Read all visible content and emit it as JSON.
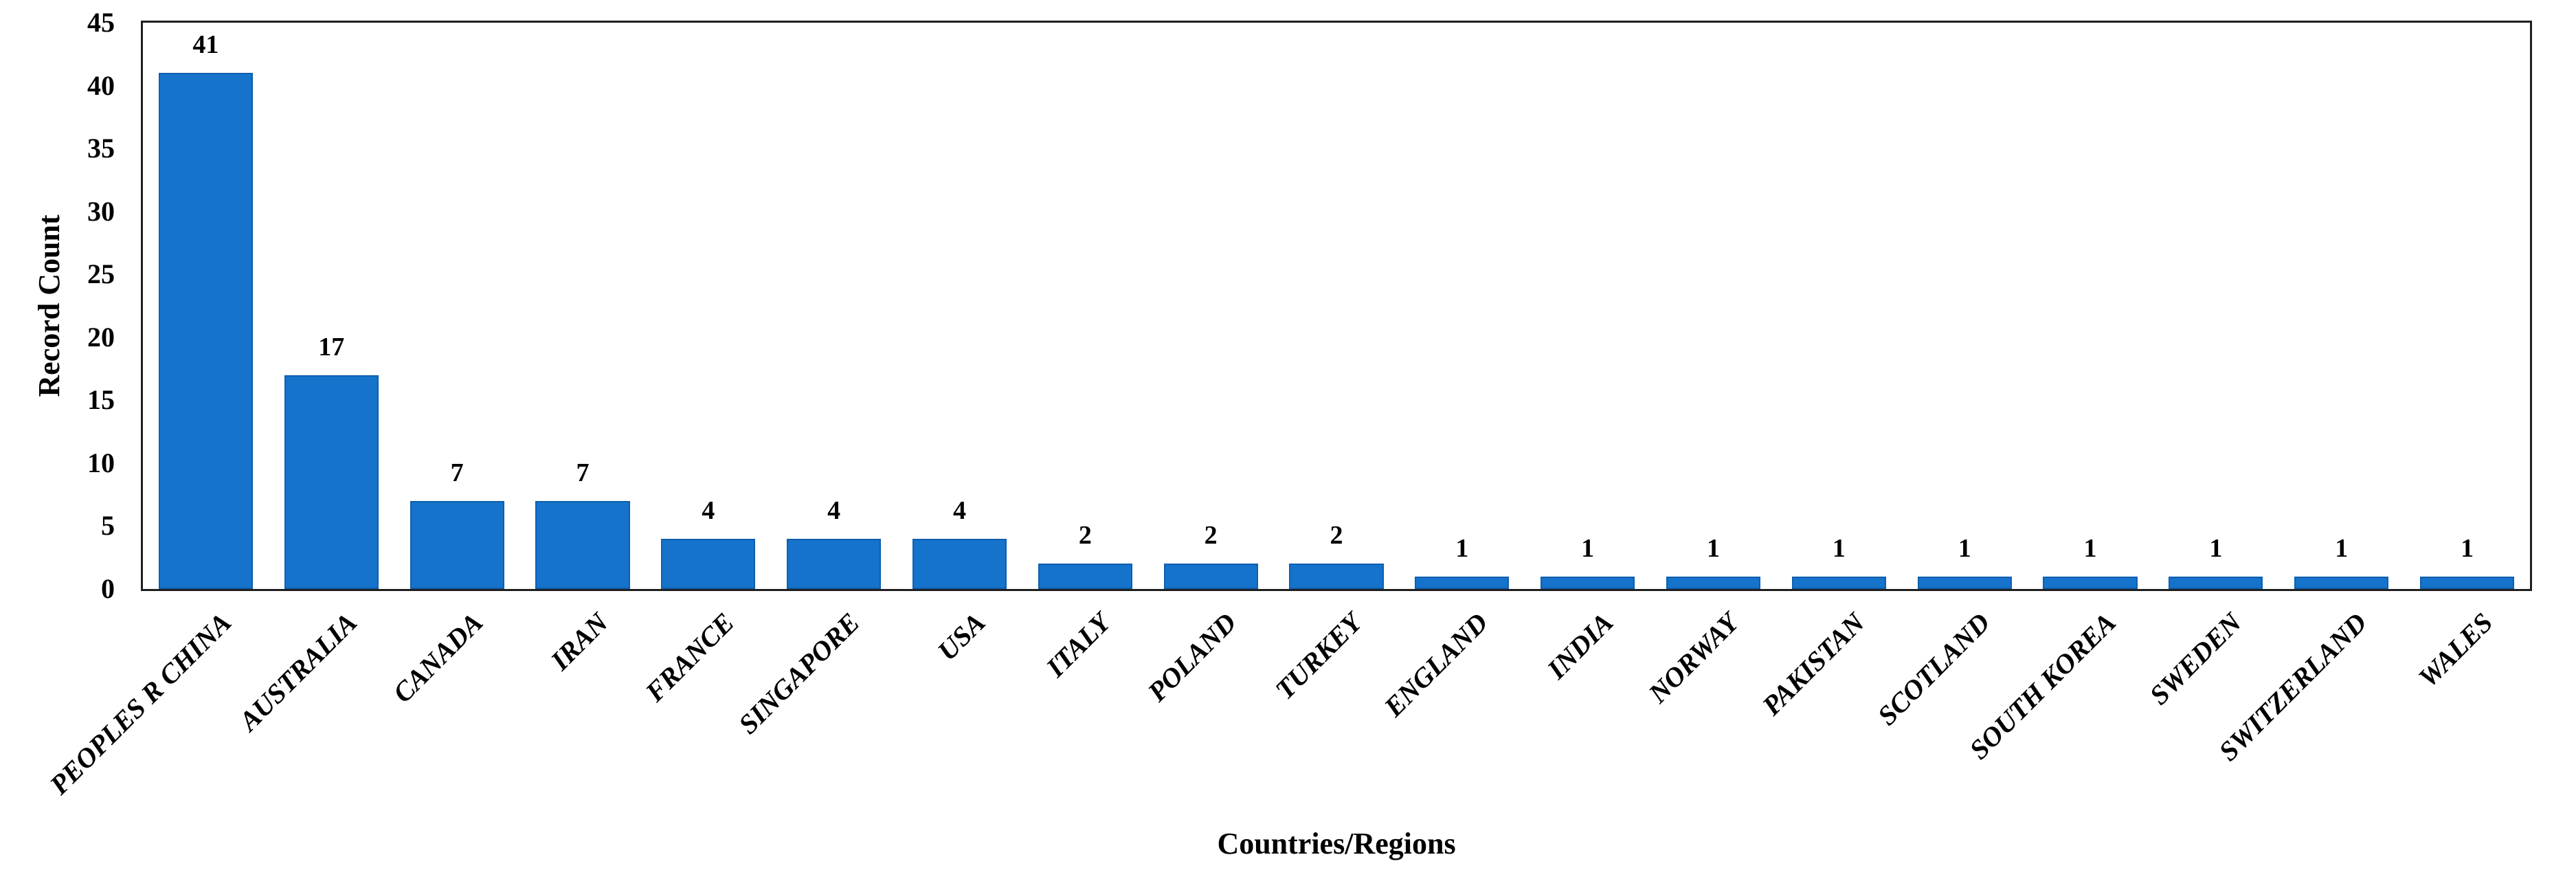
{
  "chart_data": {
    "type": "bar",
    "title": "",
    "xlabel": "Countries/Regions",
    "ylabel": "Record Count",
    "categories": [
      "PEOPLES R CHINA",
      "AUSTRALIA",
      "CANADA",
      "IRAN",
      "FRANCE",
      "SINGAPORE",
      "USA",
      "ITALY",
      "POLAND",
      "TURKEY",
      "ENGLAND",
      "INDIA",
      "NORWAY",
      "PAKISTAN",
      "SCOTLAND",
      "SOUTH KOREA",
      "SWEDEN",
      "SWITZERLAND",
      "WALES"
    ],
    "values": [
      41,
      17,
      7,
      7,
      4,
      4,
      4,
      2,
      2,
      2,
      1,
      1,
      1,
      1,
      1,
      1,
      1,
      1,
      1
    ],
    "value_labels_shown": true,
    "ylim": [
      0,
      45
    ],
    "yticks": [
      0,
      5,
      10,
      15,
      20,
      25,
      30,
      35,
      40,
      45
    ],
    "x_tick_rotation_deg": 45,
    "grid": false,
    "legend_position": "none",
    "bar_color": "#1673CB",
    "bar_edge_color": "#0E5FAE",
    "axis_border_color": "#1f1f1f",
    "text_color": "#000000"
  }
}
